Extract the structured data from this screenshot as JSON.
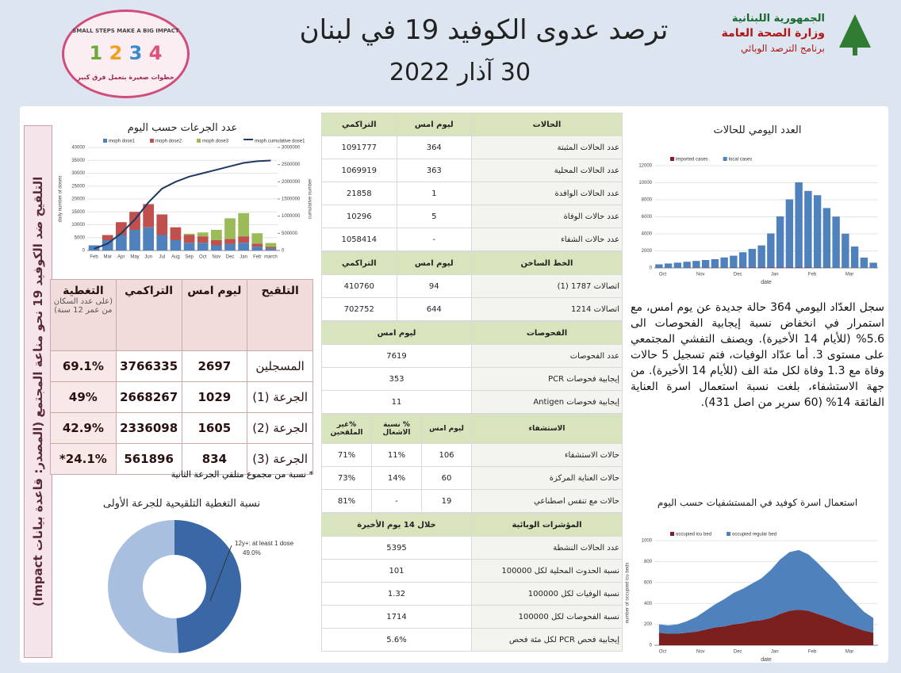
{
  "header": {
    "title": "ترصد عدوى الكوفيد 19 في لبنان",
    "date": "30 آذار 2022",
    "ministry": [
      "الجمهورية اللبنانية",
      "وزارة الصحة العامة",
      "برنامج الترصد الوبائي"
    ],
    "logo_en": "SMALL STEPS MAKE A BIG IMPACT",
    "logo_ar": "خطوات صغيرة بتعمل فرق كبير"
  },
  "sidebar": "التلقيح ضد الكوفيد 19 نحو مناعة المجتمع (المصدر: قاعدة بيانات Impact)",
  "vaccine": {
    "chart": {
      "type": "bar",
      "title": "عدد الجرعات حسب اليوم",
      "categories": [
        "Feb",
        "Mar",
        "Apr",
        "May",
        "Jun",
        "Jul",
        "Aug",
        "Sep",
        "Oct",
        "Nov",
        "Dec",
        "Jan",
        "Feb",
        "march"
      ],
      "series": [
        {
          "name": "moph dose1",
          "color": "#4f81bd",
          "values": [
            2000,
            4000,
            6000,
            8000,
            9000,
            6000,
            4000,
            3000,
            3000,
            2000,
            2500,
            3000,
            1500,
            800
          ]
        },
        {
          "name": "moph dose2",
          "color": "#c0504d",
          "values": [
            0,
            2000,
            5000,
            7000,
            9000,
            8000,
            5000,
            3000,
            2500,
            2000,
            2000,
            2500,
            1200,
            600
          ]
        },
        {
          "name": "moph dose3",
          "color": "#9bbb59",
          "values": [
            0,
            0,
            0,
            0,
            0,
            0,
            0,
            500,
            1500,
            4000,
            8000,
            9000,
            4000,
            1500
          ]
        },
        {
          "name": "moph cumulative dose1",
          "color": "#1f3864",
          "axis": "y2",
          "values": [
            50000,
            200000,
            500000,
            900000,
            1400000,
            1800000,
            2000000,
            2150000,
            2250000,
            2350000,
            2450000,
            2550000,
            2600000,
            2620000
          ]
        }
      ],
      "ylim": [
        0,
        40000
      ],
      "yticks": [
        0,
        5000,
        10000,
        15000,
        20000,
        25000,
        30000,
        35000,
        40000
      ],
      "y2lim": [
        0,
        3000000
      ],
      "y2ticks": [
        0,
        500000,
        1000000,
        1500000,
        2000000,
        2500000,
        3000000
      ],
      "ylabel": "daily number of doses",
      "y2label": "cumulative number"
    },
    "table": {
      "header": [
        "التلقيح",
        "ليوم امس",
        "التراكمي",
        "التغطية"
      ],
      "header_note": "(على عدد السكان من عمر 12 سنة)",
      "rows": [
        [
          "المسجلين",
          2697,
          3766335,
          "69.1%"
        ],
        [
          "الجرعة (1)",
          1029,
          2668267,
          "49%"
        ],
        [
          "الجرعة (2)",
          1605,
          2336098,
          "42.9%"
        ],
        [
          "الجرعة (3)",
          834,
          561896,
          "24.1%*"
        ]
      ]
    },
    "footnote": "* نسبة من مجموع متلقي الجرعة الثانية",
    "donut": {
      "type": "pie",
      "title": "نسبة التغطية التلقيحية للجرعة الأولى",
      "label": "12y+: at least 1 dose",
      "value": 49.0,
      "value_label": "49.0%",
      "color": "#3a68a6"
    }
  },
  "middle": {
    "sections": [
      {
        "header": [
          "الحالات",
          "ليوم امس",
          "التراكمي"
        ],
        "rows": [
          [
            "عدد الحالات المثبتة",
            364,
            1091777
          ],
          [
            "عدد الحالات المحلية",
            363,
            1069919
          ],
          [
            "عدد الحالات الوافدة",
            1,
            21858
          ],
          [
            "عدد حالات الوفاة",
            5,
            10296
          ],
          [
            "عدد حالات الشفاء",
            "-",
            1058414
          ]
        ]
      },
      {
        "header": [
          "الخط الساخن",
          "ليوم امس",
          "التراكمي"
        ],
        "rows": [
          [
            "اتصالات 1787 (1)",
            94,
            410760
          ],
          [
            "اتصالات 1214",
            644,
            702752
          ]
        ]
      },
      {
        "header": [
          "الفحوصات",
          "ليوم امس"
        ],
        "rows": [
          [
            "عدد الفحوصات",
            7619
          ],
          [
            "إيجابية فحوصات PCR",
            353
          ],
          [
            "إيجابية فحوصات Antigen",
            11
          ]
        ]
      },
      {
        "header": [
          "الاستشفاء",
          "ليوم امس",
          "% نسبة الاشغال",
          "%غير الملقحين"
        ],
        "rows": [
          [
            "حالات الاستشفاء",
            106,
            "11%",
            "71%"
          ],
          [
            "حالات العناية المركزة",
            60,
            "14%",
            "73%"
          ],
          [
            "حالات مع تنفس اصطناعي",
            19,
            "-",
            "81%"
          ]
        ]
      },
      {
        "header": [
          "المؤشرات الوبائية",
          "خلال 14 يوم الأخيرة"
        ],
        "rows": [
          [
            "عدد الحالات النشطة",
            5395
          ],
          [
            "نسبة الحدوث المحلية لكل 100000",
            101
          ],
          [
            "نسبة الوفيات لكل 100000",
            1.32
          ],
          [
            "نسبة الفحوصات لكل 100000",
            1714
          ],
          [
            "إيجابية فحص PCR لكل مئة فحص",
            "5.6%"
          ]
        ]
      }
    ]
  },
  "right": {
    "cases_chart": {
      "type": "bar",
      "title": "العدد اليومي للحالات",
      "categories": [
        "Oct",
        null,
        null,
        null,
        "Nov",
        null,
        null,
        null,
        "Dec",
        null,
        null,
        null,
        "Jan",
        null,
        null,
        null,
        "Feb",
        null,
        null,
        null,
        "Mar",
        null,
        null,
        null
      ],
      "series": [
        {
          "name": "imported cases",
          "color": "#8b1a2b",
          "values": [
            20,
            20,
            20,
            25,
            25,
            30,
            30,
            30,
            35,
            40,
            40,
            45,
            50,
            50,
            50,
            45,
            40,
            35,
            30,
            25,
            20,
            20,
            15,
            15
          ]
        },
        {
          "name": "local cases",
          "color": "#4f81bd",
          "values": [
            400,
            500,
            600,
            700,
            800,
            900,
            1000,
            1200,
            1400,
            1800,
            2200,
            2600,
            4000,
            6000,
            8000,
            10000,
            9000,
            8500,
            7000,
            6000,
            4000,
            2500,
            1200,
            600
          ]
        }
      ],
      "ylim": [
        0,
        12000
      ],
      "yticks": [
        0,
        2000,
        4000,
        6000,
        8000,
        10000,
        12000
      ],
      "xlabel": "date"
    },
    "summary": "سجل العدّاد اليومي 364 حالة جديدة عن يوم امس، مع استمرار في انخفاض نسبة إيجابية الفحوصات الى 5.6% (للأيام 14 الأخيرة). ويصنف التفشي المجتمعي على مستوى 3. أما عدّاد الوفيات، فتم تسجيل 5 حالات وفاة مع 1.3 وفاة لكل مئة الف (للأيام 14 الأخيرة). من جهة الاستشفاء، بلغت نسبة استعمال اسرة العناية الفائقة 14% (60 سرير من اصل 431).",
    "beds_chart": {
      "type": "area",
      "title": "استعمال اسرة كوفيد في المستشفيات حسب اليوم",
      "categories": [
        "Oct",
        null,
        null,
        null,
        "Nov",
        null,
        null,
        null,
        "Dec",
        null,
        null,
        null,
        "Jan",
        null,
        null,
        null,
        "Feb",
        null,
        null,
        null,
        "Mar",
        null,
        null,
        null
      ],
      "series": [
        {
          "name": "occupied icu bed",
          "color": "#7b1f1f",
          "values": [
            120,
            110,
            110,
            120,
            130,
            150,
            170,
            180,
            200,
            210,
            230,
            240,
            260,
            300,
            330,
            340,
            330,
            300,
            270,
            240,
            200,
            170,
            140,
            120
          ]
        },
        {
          "name": "occupied regular bed",
          "color": "#4f81bd",
          "values": [
            80,
            80,
            90,
            110,
            140,
            180,
            220,
            260,
            300,
            330,
            360,
            400,
            460,
            520,
            560,
            570,
            540,
            490,
            430,
            370,
            300,
            240,
            180,
            140
          ]
        }
      ],
      "ylim": [
        0,
        1000
      ],
      "yticks": [
        0,
        200,
        400,
        600,
        800,
        1000
      ],
      "xlabel": "date",
      "ylabel": "number of occupied icu beds"
    }
  }
}
